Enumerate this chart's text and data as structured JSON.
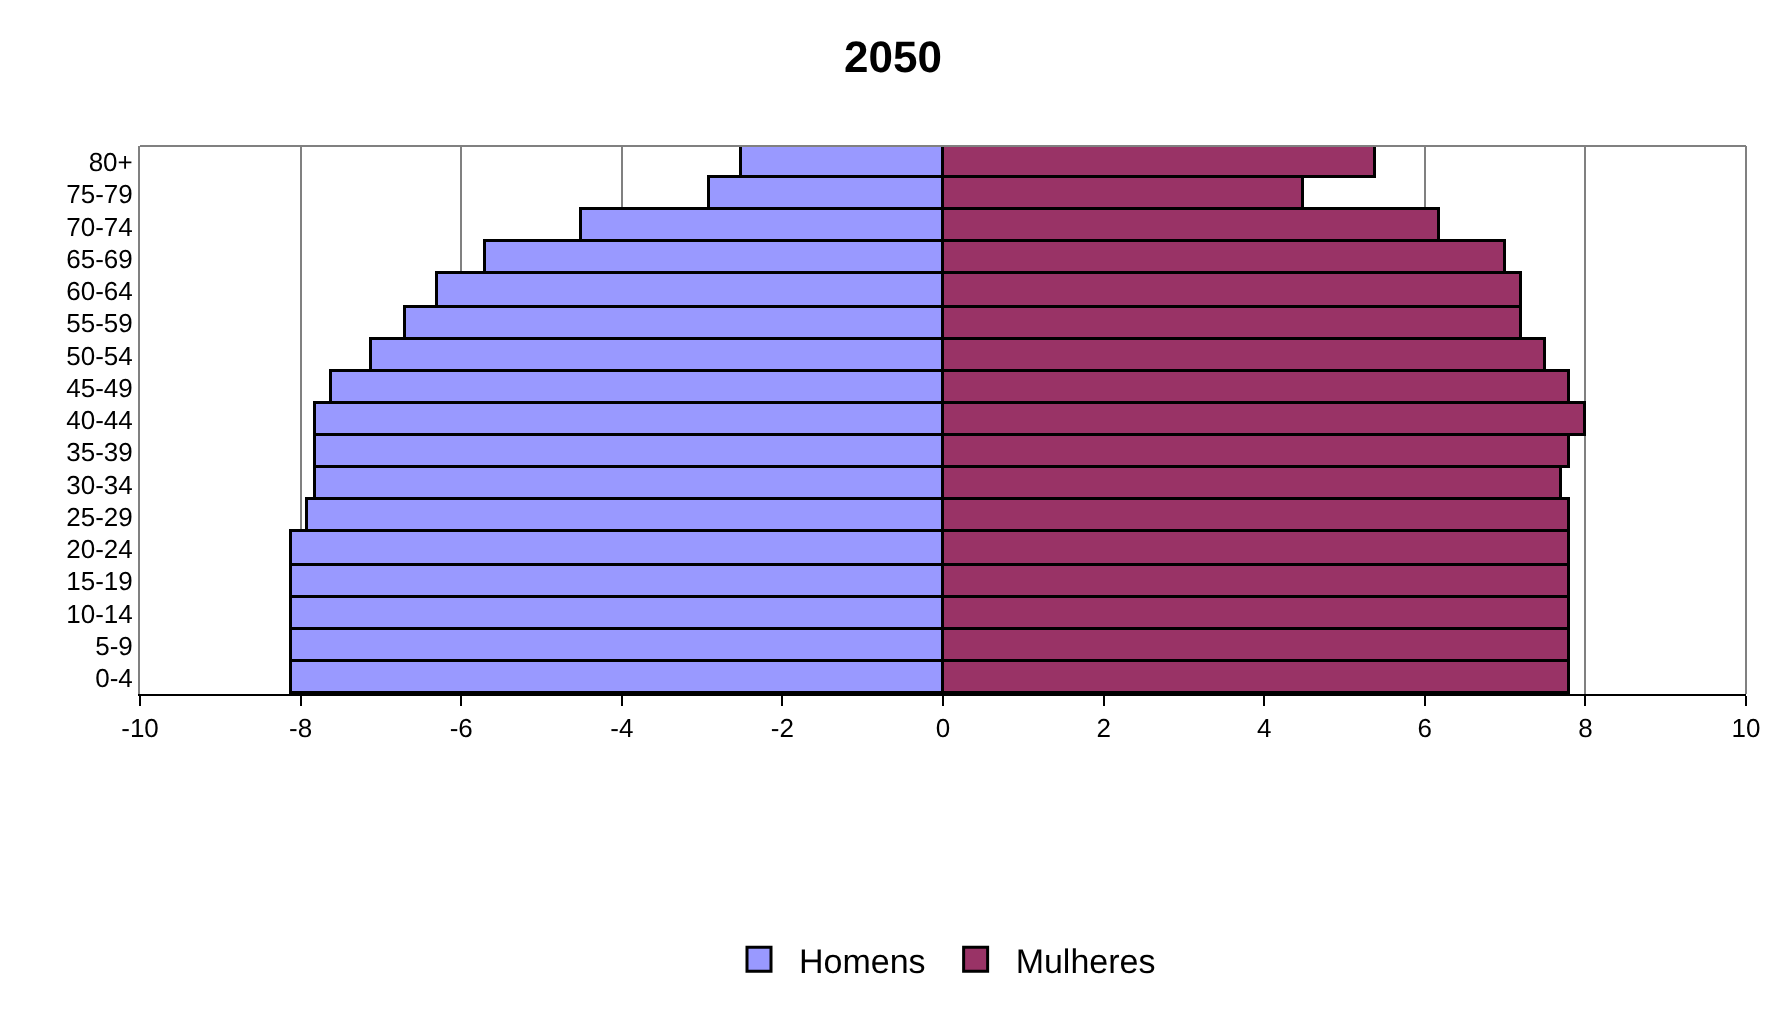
{
  "chart_data": {
    "type": "bar",
    "orientation": "horizontal",
    "title": "2050",
    "categories": [
      "80+",
      "75-79",
      "70-74",
      "65-69",
      "60-64",
      "55-59",
      "50-54",
      "45-49",
      "40-44",
      "35-39",
      "30-34",
      "25-29",
      "20-24",
      "15-19",
      "10-14",
      "5-9",
      "0-4"
    ],
    "series": [
      {
        "name": "Homens",
        "color": "#9999ff",
        "values": [
          -2.5,
          -2.9,
          -4.5,
          -5.7,
          -6.3,
          -6.7,
          -7.1,
          -7.6,
          -7.8,
          -7.8,
          -7.8,
          -7.9,
          -8.1,
          -8.1,
          -8.1,
          -8.1,
          -8.1
        ]
      },
      {
        "name": "Mulheres",
        "color": "#993366",
        "values": [
          5.4,
          4.5,
          6.2,
          7.0,
          7.2,
          7.2,
          7.5,
          7.8,
          8.0,
          7.8,
          7.7,
          7.8,
          7.8,
          7.8,
          7.8,
          7.8,
          7.8
        ]
      }
    ],
    "xlim": [
      -10,
      10
    ],
    "xticks": [
      -10,
      -8,
      -6,
      -4,
      -2,
      0,
      2,
      4,
      6,
      8,
      10
    ],
    "grid": "x",
    "legend": "bottom",
    "stacked": true
  }
}
